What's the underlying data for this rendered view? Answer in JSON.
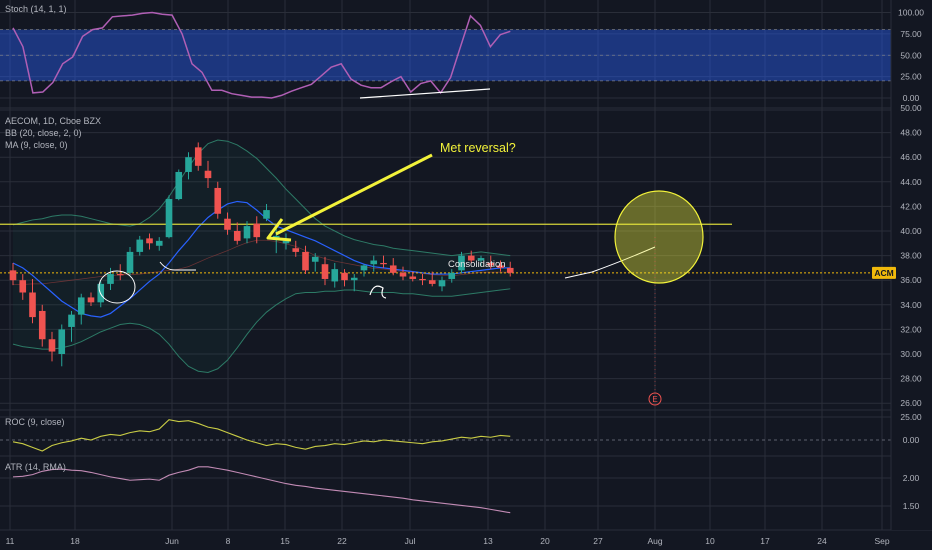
{
  "colors": {
    "background": "#131722",
    "grid": "#2a2e39",
    "up": "#26a69a",
    "down": "#ef5350",
    "stoch_band": "#2962ff",
    "stoch_line": "#b05fb5",
    "bb": "#1f5f52",
    "ma": "#2962ff",
    "roc": "#c9cc45",
    "atr": "#c28bb5",
    "annotation": "#f2f23a",
    "price_line": "#f0b90b"
  },
  "panes": {
    "stoch": {
      "title": "Stoch (14, 1, 1)"
    },
    "price": {
      "title": "AECOM, 1D, Cboe BZX",
      "indicators": [
        "BB (20, close, 2, 0)",
        "MA (9, close, 0)"
      ],
      "price_tag": "ACM"
    },
    "roc": {
      "title": "ROC (9, close)"
    },
    "atr": {
      "title": "ATR (14, RMA)"
    }
  },
  "annotations": {
    "arrow_text": "Met reversal?",
    "consolidation": "Consolidation",
    "earnings_marker": "E"
  },
  "chart_data": [
    {
      "type": "line",
      "name": "Stochastic",
      "title": "Stoch (14, 1, 1)",
      "ylim": [
        -5,
        105
      ],
      "y_ticks": [
        0.0,
        25.0,
        50.0,
        75.0,
        100.0
      ],
      "y_tick_labels": [
        "0.00",
        "25.00",
        "50.00",
        "75.00",
        "100.00"
      ],
      "band": [
        20,
        80
      ],
      "x": [
        0,
        1,
        2,
        3,
        4,
        5,
        6,
        7,
        8,
        9,
        10,
        11,
        12,
        13,
        14,
        15,
        16,
        17,
        18,
        19,
        20,
        21,
        22,
        23,
        24,
        25,
        26,
        27,
        28,
        29,
        30,
        31,
        32,
        33,
        34,
        35,
        36,
        37,
        38,
        39,
        40,
        41,
        42,
        43,
        44,
        45,
        46,
        47,
        48,
        49,
        50
      ],
      "values": [
        82,
        60,
        6,
        7,
        18,
        40,
        48,
        72,
        80,
        82,
        95,
        96,
        97,
        99,
        100,
        98,
        97,
        75,
        40,
        30,
        9,
        9,
        5,
        3,
        1,
        1,
        0,
        3,
        8,
        12,
        16,
        26,
        36,
        40,
        22,
        15,
        12,
        12,
        19,
        25,
        7,
        17,
        20,
        6,
        24,
        60,
        96,
        85,
        60,
        74,
        78
      ]
    },
    {
      "type": "candlestick",
      "name": "AECOM",
      "title": "AECOM, 1D, Cboe BZX",
      "ylim": [
        25,
        51
      ],
      "y_ticks": [
        26,
        28,
        30,
        32,
        34,
        36,
        38,
        40,
        42,
        44,
        46,
        48,
        50
      ],
      "y_tick_labels": [
        "26.00",
        "28.00",
        "30.00",
        "32.00",
        "34.00",
        "36.00",
        "38.00",
        "40.00",
        "42.00",
        "44.00",
        "46.00",
        "48.00",
        "50.00"
      ],
      "x_ticks": [
        "11",
        "18",
        "Jun",
        "8",
        "15",
        "22",
        "Jul",
        "13",
        "20",
        "27",
        "Aug",
        "10",
        "17",
        "24",
        "Sep"
      ],
      "ohlc": [
        [
          0,
          36.8,
          37.4,
          35.6,
          36.0
        ],
        [
          1,
          36.0,
          36.5,
          34.4,
          35.0
        ],
        [
          2,
          35.0,
          36.1,
          32.5,
          33.0
        ],
        [
          3,
          33.5,
          34.0,
          30.6,
          31.2
        ],
        [
          4,
          31.2,
          31.8,
          29.4,
          30.2
        ],
        [
          5,
          30.0,
          32.4,
          29.0,
          32.0
        ],
        [
          6,
          32.2,
          33.5,
          31.0,
          33.2
        ],
        [
          7,
          33.2,
          34.9,
          32.4,
          34.6
        ],
        [
          8,
          34.6,
          35.0,
          33.9,
          34.2
        ],
        [
          9,
          34.2,
          35.9,
          33.8,
          35.7
        ],
        [
          10,
          35.7,
          37.0,
          35.2,
          36.5
        ],
        [
          11,
          36.5,
          37.3,
          36.0,
          36.4
        ],
        [
          12,
          36.6,
          38.7,
          36.4,
          38.3
        ],
        [
          13,
          38.3,
          39.6,
          38.0,
          39.3
        ],
        [
          14,
          39.4,
          39.8,
          38.5,
          39.0
        ],
        [
          15,
          38.8,
          39.5,
          38.4,
          39.2
        ],
        [
          16,
          39.5,
          42.9,
          39.4,
          42.6
        ],
        [
          17,
          42.6,
          45.0,
          42.5,
          44.8
        ],
        [
          18,
          44.8,
          46.4,
          44.2,
          46.0
        ],
        [
          19,
          46.8,
          47.2,
          44.9,
          45.3
        ],
        [
          20,
          44.9,
          45.7,
          43.5,
          44.3
        ],
        [
          21,
          43.5,
          44.0,
          41.0,
          41.4
        ],
        [
          22,
          41.0,
          41.5,
          39.7,
          40.1
        ],
        [
          23,
          40.0,
          40.7,
          38.9,
          39.2
        ],
        [
          24,
          39.4,
          40.8,
          39.0,
          40.4
        ],
        [
          25,
          40.6,
          41.2,
          39.0,
          39.5
        ],
        [
          26,
          41.0,
          42.2,
          40.8,
          41.7
        ],
        [
          27,
          39.4,
          40.3,
          38.2,
          39.6
        ],
        [
          28,
          39.0,
          39.8,
          38.5,
          39.2
        ],
        [
          29,
          38.6,
          39.2,
          37.9,
          38.3
        ],
        [
          30,
          38.3,
          38.8,
          36.5,
          36.8
        ],
        [
          31,
          37.5,
          38.2,
          36.7,
          37.9
        ],
        [
          32,
          37.3,
          37.9,
          35.6,
          36.1
        ],
        [
          33,
          35.9,
          37.4,
          35.4,
          36.9
        ],
        [
          34,
          36.6,
          36.9,
          35.5,
          36.0
        ],
        [
          35,
          36.0,
          36.5,
          35.1,
          36.2
        ],
        [
          36,
          36.8,
          37.3,
          36.3,
          37.2
        ],
        [
          37,
          37.3,
          38.0,
          36.7,
          37.6
        ],
        [
          38,
          37.4,
          38.0,
          37.0,
          37.3
        ],
        [
          39,
          37.2,
          37.8,
          36.4,
          36.6
        ],
        [
          40,
          36.6,
          37.1,
          36.0,
          36.3
        ],
        [
          41,
          36.3,
          36.7,
          35.9,
          36.1
        ],
        [
          42,
          36.1,
          36.5,
          35.6,
          36.0
        ],
        [
          43,
          36.0,
          36.7,
          35.5,
          35.7
        ],
        [
          44,
          35.5,
          36.3,
          35.1,
          36.0
        ],
        [
          45,
          36.1,
          36.9,
          35.8,
          36.6
        ],
        [
          46,
          36.8,
          38.3,
          36.6,
          38.0
        ],
        [
          47,
          38.0,
          38.4,
          37.4,
          37.6
        ],
        [
          48,
          37.6,
          38.0,
          37.1,
          37.8
        ],
        [
          49,
          37.4,
          38.0,
          36.9,
          37.2
        ],
        [
          50,
          37.2,
          37.6,
          36.7,
          37.0
        ],
        [
          51,
          37.0,
          37.5,
          36.3,
          36.6
        ]
      ],
      "bb_upper": [
        40.5,
        40.7,
        40.9,
        41.0,
        41.2,
        41.3,
        41.3,
        41.2,
        41.0,
        40.8,
        40.6,
        40.5,
        40.4,
        40.6,
        41.1,
        41.8,
        42.8,
        44.0,
        45.2,
        46.3,
        47.1,
        47.4,
        47.3,
        47.0,
        46.5,
        45.9,
        45.1,
        44.3,
        43.4,
        42.6,
        41.8,
        41.0,
        40.4,
        40.0,
        39.6,
        39.3,
        39.1,
        38.9,
        38.8,
        38.6,
        38.5,
        38.4,
        38.3,
        38.2,
        38.1,
        38.0,
        38.1,
        38.2,
        38.3,
        38.2,
        38.1,
        38.0
      ],
      "bb_lower": [
        30.8,
        30.6,
        30.5,
        30.4,
        30.4,
        30.5,
        30.7,
        31.0,
        31.4,
        31.8,
        32.1,
        32.4,
        32.5,
        32.4,
        32.1,
        31.6,
        30.8,
        29.8,
        29.0,
        28.6,
        28.5,
        28.8,
        29.5,
        30.5,
        31.6,
        32.6,
        33.4,
        34.0,
        34.5,
        34.9,
        35.0,
        35.0,
        35.1,
        35.1,
        35.2,
        35.2,
        35.1,
        35.0,
        35.0,
        35.0,
        34.9,
        34.9,
        34.8,
        34.7,
        34.7,
        34.7,
        34.8,
        34.9,
        35.0,
        35.1,
        35.2,
        35.3
      ],
      "ma": [
        37.4,
        37.0,
        36.4,
        35.7,
        35.0,
        34.3,
        33.8,
        33.3,
        33.1,
        33.0,
        33.3,
        33.9,
        34.5,
        35.2,
        35.9,
        36.5,
        37.4,
        38.4,
        39.3,
        40.3,
        41.1,
        41.7,
        42.2,
        42.4,
        42.3,
        41.7,
        41.0,
        40.4,
        40.1,
        39.8,
        39.5,
        39.2,
        38.8,
        38.4,
        38.0,
        37.6,
        37.3,
        37.1,
        37.0,
        36.9,
        36.8,
        36.7,
        36.6,
        36.5,
        36.5,
        36.5,
        36.6,
        36.7,
        36.8,
        36.9,
        37.0,
        37.0
      ],
      "horizontal_line": 40.55,
      "current_price": 36.6
    },
    {
      "type": "line",
      "name": "ROC",
      "title": "ROC (9, close)",
      "ylim": [
        -15,
        35
      ],
      "y_ticks": [
        0.0,
        25.0
      ],
      "y_tick_labels": [
        "0.00",
        "25.00"
      ],
      "values": [
        -2,
        -4,
        -8,
        -12,
        -6,
        -3,
        -1,
        2,
        0,
        4,
        6,
        5,
        8,
        10,
        9,
        12,
        22,
        20,
        21,
        18,
        14,
        12,
        8,
        4,
        0,
        -3,
        -6,
        -4,
        -5,
        -8,
        -10,
        -7,
        -6,
        -4,
        -5,
        -3,
        -1,
        -2,
        0,
        -1,
        -2,
        -3,
        -4,
        -2,
        -1,
        1,
        3,
        2,
        4,
        3,
        5,
        4
      ]
    },
    {
      "type": "line",
      "name": "ATR",
      "title": "ATR (14, RMA)",
      "ylim": [
        1.3,
        2.6
      ],
      "y_ticks": [
        1.5,
        2.0
      ],
      "y_tick_labels": [
        "1.50",
        "2.00"
      ],
      "values": [
        2.02,
        2.03,
        2.06,
        2.12,
        2.15,
        2.16,
        2.14,
        2.13,
        2.1,
        2.06,
        2.02,
        1.99,
        1.96,
        1.97,
        1.98,
        1.96,
        2.05,
        2.1,
        2.14,
        2.2,
        2.2,
        2.17,
        2.14,
        2.1,
        2.06,
        2.02,
        1.98,
        1.94,
        1.9,
        1.87,
        1.85,
        1.82,
        1.8,
        1.78,
        1.76,
        1.74,
        1.72,
        1.7,
        1.68,
        1.66,
        1.64,
        1.61,
        1.59,
        1.57,
        1.55,
        1.53,
        1.51,
        1.49,
        1.47,
        1.44,
        1.41,
        1.38
      ]
    }
  ]
}
